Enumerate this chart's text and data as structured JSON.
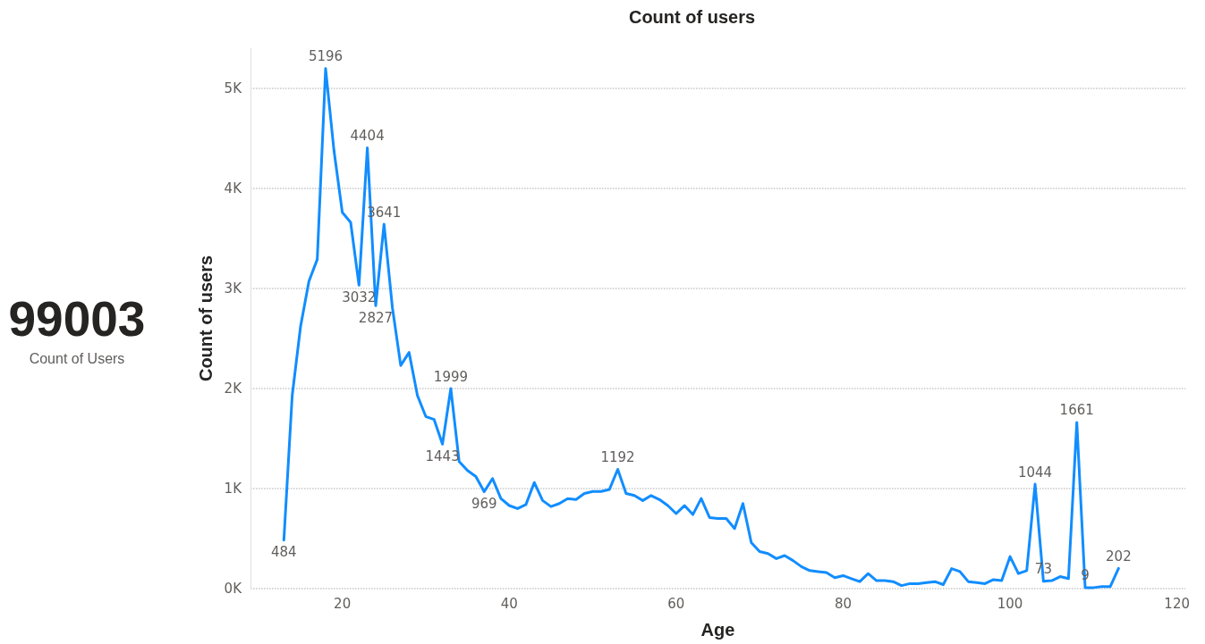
{
  "chart_data": [
    {
      "type": "other",
      "categories": [
        "Count of Users"
      ],
      "values": [
        99003
      ],
      "data_labels": true
    },
    {
      "type": "line",
      "title": "Count of users",
      "xlabel": "Age",
      "ylabel": "Count of users",
      "x": [
        13,
        14,
        15,
        16,
        17,
        18,
        19,
        20,
        21,
        22,
        23,
        24,
        25,
        26,
        27,
        28,
        29,
        30,
        31,
        32,
        33,
        34,
        35,
        36,
        37,
        38,
        39,
        40,
        41,
        42,
        43,
        44,
        45,
        46,
        47,
        48,
        49,
        50,
        51,
        52,
        53,
        54,
        55,
        56,
        57,
        58,
        59,
        60,
        61,
        62,
        63,
        64,
        65,
        66,
        67,
        68,
        69,
        70,
        71,
        72,
        73,
        74,
        75,
        76,
        77,
        78,
        79,
        80,
        81,
        82,
        83,
        84,
        85,
        86,
        87,
        88,
        89,
        90,
        91,
        92,
        93,
        94,
        95,
        96,
        97,
        98,
        99,
        100,
        101,
        102,
        103,
        104,
        105,
        106,
        107,
        108,
        109,
        110,
        111,
        112,
        113
      ],
      "values": [
        484,
        1930,
        2620,
        3070,
        3290,
        5196,
        4380,
        3760,
        3660,
        3032,
        4404,
        2827,
        3641,
        2810,
        2230,
        2360,
        1930,
        1720,
        1690,
        1443,
        1999,
        1270,
        1180,
        1120,
        969,
        1100,
        900,
        830,
        800,
        840,
        1060,
        880,
        820,
        850,
        900,
        890,
        950,
        970,
        970,
        990,
        1192,
        950,
        930,
        880,
        930,
        890,
        830,
        750,
        830,
        740,
        900,
        710,
        700,
        700,
        600,
        850,
        460,
        370,
        350,
        300,
        330,
        280,
        220,
        180,
        170,
        160,
        110,
        130,
        100,
        70,
        150,
        80,
        80,
        70,
        30,
        50,
        50,
        60,
        70,
        40,
        200,
        170,
        70,
        60,
        50,
        90,
        80,
        320,
        150,
        180,
        1044,
        73,
        80,
        120,
        100,
        1661,
        9,
        10,
        20,
        20,
        202
      ],
      "value_labels": [
        "484",
        null,
        null,
        null,
        null,
        "5196",
        null,
        null,
        null,
        "3032",
        "4404",
        "2827",
        "3641",
        null,
        null,
        null,
        null,
        null,
        null,
        "1443",
        "1999",
        null,
        null,
        null,
        "969",
        null,
        null,
        null,
        null,
        null,
        null,
        null,
        null,
        null,
        null,
        null,
        null,
        null,
        null,
        null,
        "1192",
        null,
        null,
        null,
        null,
        null,
        null,
        null,
        null,
        null,
        null,
        null,
        null,
        null,
        null,
        null,
        null,
        null,
        null,
        null,
        null,
        null,
        null,
        null,
        null,
        null,
        null,
        null,
        null,
        null,
        null,
        null,
        null,
        null,
        null,
        null,
        null,
        null,
        null,
        null,
        null,
        null,
        null,
        null,
        null,
        null,
        null,
        null,
        null,
        null,
        "1044",
        "73",
        null,
        null,
        null,
        "1661",
        "9",
        null,
        null,
        null,
        "202"
      ],
      "color": "#118dff",
      "marker": "none",
      "line_style": "solid",
      "grid": "y",
      "xlim": [
        9,
        121
      ],
      "xticks": [
        20,
        40,
        60,
        80,
        100,
        120
      ],
      "ylim": [
        0,
        5400
      ],
      "yticks": [
        {
          "value": 0,
          "label": "0K"
        },
        {
          "value": 1000,
          "label": "1K"
        },
        {
          "value": 2000,
          "label": "2K"
        },
        {
          "value": 3000,
          "label": "3K"
        },
        {
          "value": 4000,
          "label": "4K"
        },
        {
          "value": 5000,
          "label": "5K"
        }
      ]
    }
  ]
}
